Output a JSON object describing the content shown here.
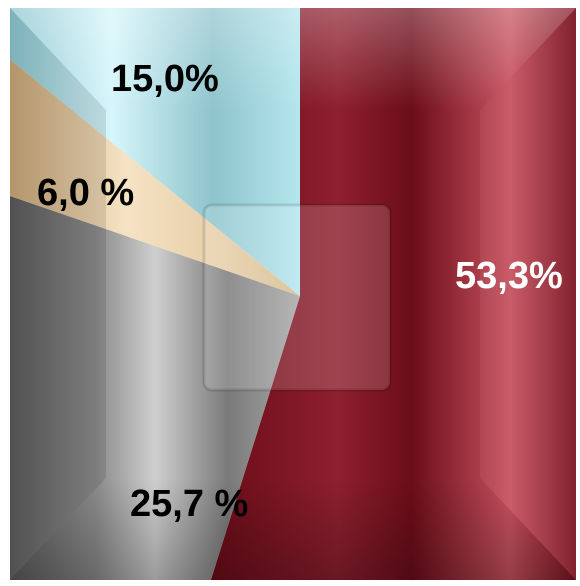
{
  "chart_data": {
    "type": "pie",
    "style": "square-bevel",
    "slices": [
      {
        "label": "53,3%",
        "value": 53.3,
        "color": "#8a1c2c",
        "label_color": "#ffffff"
      },
      {
        "label": "25,7 %",
        "value": 25.7,
        "color": "#9a9a9a",
        "label_color": "#000000"
      },
      {
        "label": "6,0 %",
        "value": 6.0,
        "color": "#e6cfa8",
        "label_color": "#000000"
      },
      {
        "label": "15,0%",
        "value": 15.0,
        "color": "#a9e1ea",
        "label_color": "#000000"
      }
    ]
  }
}
